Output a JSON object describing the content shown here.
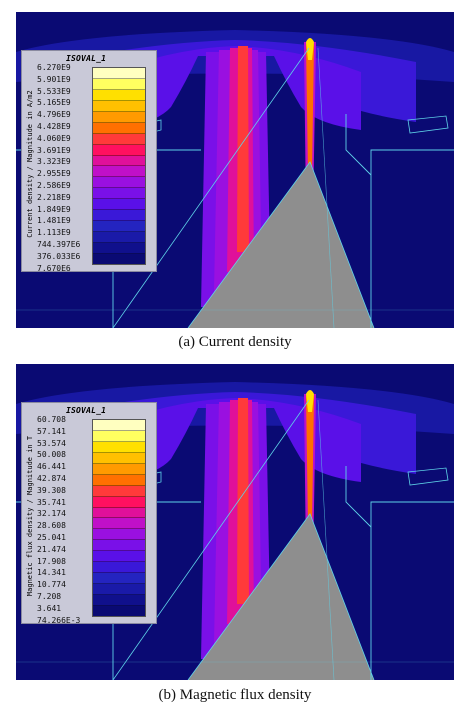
{
  "panels": [
    {
      "legend_title": "ISOVAL_1",
      "legend_axis_label": "Current density / Magnitude in A/m2",
      "legend_values": [
        "6.270E9",
        "5.901E9",
        "5.533E9",
        "5.165E9",
        "4.796E9",
        "4.428E9",
        "4.060E9",
        "3.691E9",
        "3.323E9",
        "2.955E9",
        "2.586E9",
        "2.218E9",
        "1.849E9",
        "1.481E9",
        "1.113E9",
        "744.397E6",
        "376.033E6",
        "7.670E6"
      ],
      "caption": "(a) Current density"
    },
    {
      "legend_title": "ISOVAL_1",
      "legend_axis_label": "Magnetic flux density / Magnitude in T",
      "legend_values": [
        "60.708",
        "57.141",
        "53.574",
        "50.008",
        "46.441",
        "42.874",
        "39.308",
        "35.741",
        "32.174",
        "28.608",
        "25.041",
        "21.474",
        "17.908",
        "14.341",
        "10.774",
        "7.208",
        "3.641",
        "74.266E-3"
      ],
      "caption": "(b) Magnetic flux density"
    }
  ],
  "colors": {
    "background": "#0a0a73",
    "cone": "#8e8e8e",
    "edges": "#5fd3e8",
    "scale": [
      "#ffffc0",
      "#ffff60",
      "#ffe000",
      "#ffc000",
      "#ff9a00",
      "#ff7000",
      "#ff3a3a",
      "#ff1060",
      "#e0109a",
      "#c010c8",
      "#9a10e0",
      "#7a10e8",
      "#5a10e8",
      "#3a18d8",
      "#2424c0",
      "#1a1aa8",
      "#10108c",
      "#0a0a73"
    ]
  }
}
